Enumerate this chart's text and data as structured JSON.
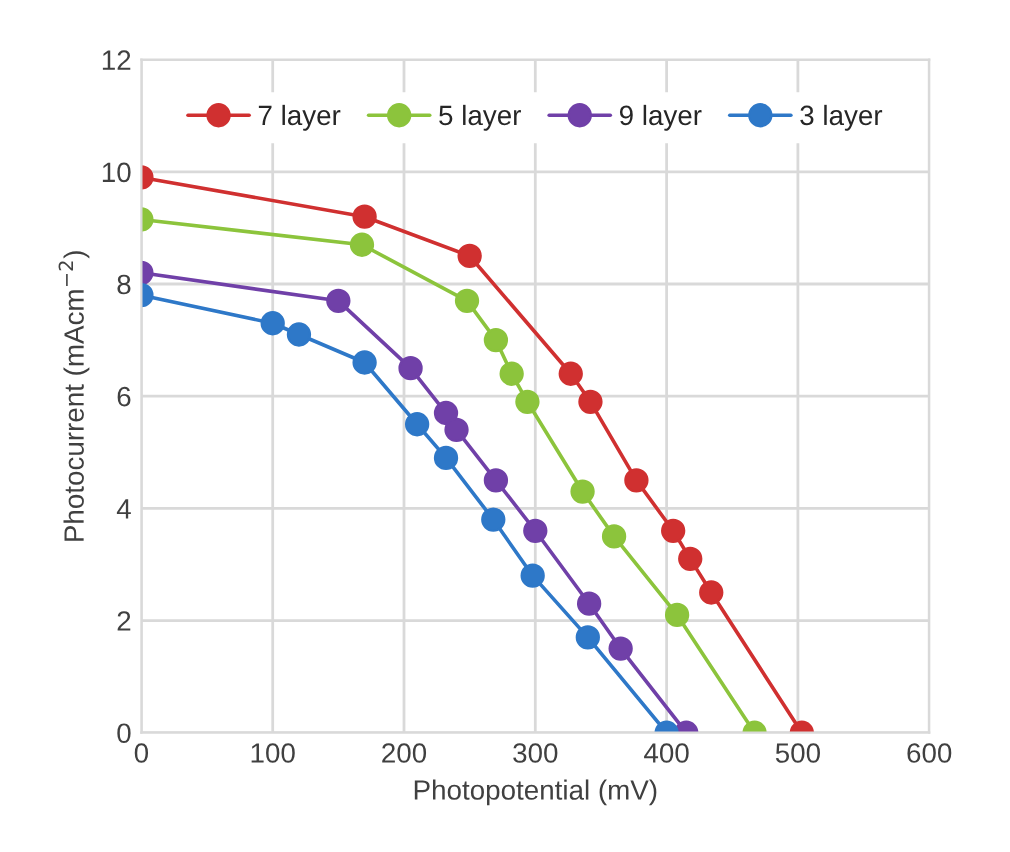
{
  "chart_data": {
    "type": "line",
    "xlabel": "Photopotential (mV)",
    "ylabel": "Photocurrent (mAcm$^{−2}$)",
    "xlim": [
      0,
      600
    ],
    "xticks": [
      0,
      100,
      200,
      300,
      400,
      500,
      600
    ],
    "ylim": [
      0,
      12
    ],
    "yticks": [
      0,
      2,
      4,
      6,
      8,
      10,
      12
    ],
    "grid": true,
    "legend": "top",
    "marker": "circle",
    "line_style": "solid",
    "series": [
      {
        "name": "7 layer",
        "color": "#d03030",
        "x": [
          0,
          170,
          250,
          327,
          342,
          377,
          405,
          418,
          434,
          503
        ],
        "values": [
          9.9,
          9.2,
          8.5,
          6.4,
          5.9,
          4.5,
          3.6,
          3.1,
          2.5,
          0
        ]
      },
      {
        "name": "5 layer",
        "color": "#8cc43c",
        "x": [
          0,
          168,
          248,
          270,
          282,
          294,
          336,
          360,
          408,
          467
        ],
        "values": [
          9.15,
          8.7,
          7.7,
          7.0,
          6.4,
          5.9,
          4.3,
          3.5,
          2.1,
          0
        ]
      },
      {
        "name": "9 layer",
        "color": "#7040a8",
        "x": [
          0,
          150,
          205,
          232,
          240,
          270,
          300,
          341,
          365,
          415
        ],
        "values": [
          8.2,
          7.7,
          6.5,
          5.7,
          5.4,
          4.5,
          3.6,
          2.3,
          1.5,
          0
        ]
      },
      {
        "name": "3 layer",
        "color": "#2e78c8",
        "x": [
          0,
          100,
          120,
          170,
          210,
          232,
          268,
          298,
          340,
          400
        ],
        "values": [
          7.8,
          7.3,
          7.1,
          6.6,
          5.5,
          4.9,
          3.8,
          2.8,
          1.7,
          0
        ]
      }
    ]
  }
}
